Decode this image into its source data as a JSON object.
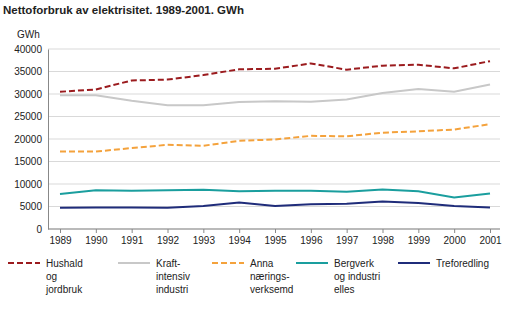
{
  "chart_data": {
    "type": "line",
    "title": "Nettoforbruk av elektrisitet. 1989-2001. GWh",
    "y_label": "GWh",
    "categories": [
      "1989",
      "1990",
      "1991",
      "1992",
      "1993",
      "1994",
      "1995",
      "1996",
      "1997",
      "1998",
      "1999",
      "2000",
      "2001"
    ],
    "ylim": [
      0,
      40000
    ],
    "yticks": [
      0,
      5000,
      10000,
      15000,
      20000,
      25000,
      30000,
      35000,
      40000
    ],
    "grid": true,
    "legend": "bottom",
    "series": [
      {
        "name": "Hushald\nog\njordbruk",
        "color": "#9b1b1e",
        "line_style": "dashed",
        "values": [
          30500,
          31000,
          33000,
          33200,
          34200,
          35500,
          35600,
          36800,
          35400,
          36300,
          36500,
          35700,
          37300
        ]
      },
      {
        "name": "Kraft-\nintensiv\nindustri",
        "color": "#c8c8c8",
        "line_style": "solid",
        "values": [
          29700,
          29700,
          28500,
          27500,
          27500,
          28200,
          28400,
          28300,
          28800,
          30200,
          31100,
          30500,
          32100
        ]
      },
      {
        "name": "Anna\nnærings-\nverksemd",
        "color": "#f4a23c",
        "line_style": "dashed",
        "values": [
          17200,
          17200,
          18000,
          18700,
          18500,
          19600,
          19900,
          20700,
          20600,
          21400,
          21700,
          22100,
          23300
        ]
      },
      {
        "name": "Bergverk\nog industri\nelles",
        "color": "#1a9e9e",
        "line_style": "solid",
        "values": [
          7800,
          8600,
          8500,
          8600,
          8700,
          8400,
          8500,
          8500,
          8300,
          8800,
          8400,
          7000,
          7900
        ]
      },
      {
        "name": "Treforedling",
        "color": "#1f2c7a",
        "line_style": "solid",
        "values": [
          4700,
          4800,
          4800,
          4700,
          5100,
          5900,
          5100,
          5500,
          5600,
          6100,
          5800,
          5100,
          4800
        ]
      }
    ]
  }
}
